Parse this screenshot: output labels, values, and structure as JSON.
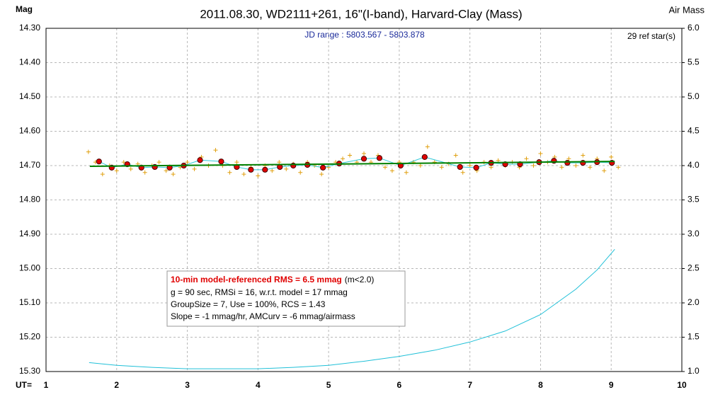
{
  "chart_data": {
    "type": "scatter",
    "title": "2011.08.30, WD2111+261, 16\"(I-band), Harvard-Clay (Mass)",
    "subtitle": "JD range : 5803.567 - 5803.878",
    "ref_stars": "29 ref star(s)",
    "ylabel": "Mag",
    "y2label": "Air Mass",
    "xlabel": "UT=",
    "xlim": [
      1,
      10
    ],
    "xticks": [
      1,
      2,
      3,
      4,
      5,
      6,
      7,
      8,
      9,
      10
    ],
    "ylim": [
      14.3,
      15.3
    ],
    "invert_y": true,
    "yticks": [
      {
        "value": 14.3,
        "label": "14.30"
      },
      {
        "value": 14.4,
        "label": "14.40"
      },
      {
        "value": 14.5,
        "label": "14.50"
      },
      {
        "value": 14.6,
        "label": "14.60"
      },
      {
        "value": 14.7,
        "label": "14.70"
      },
      {
        "value": 14.8,
        "label": "14.80"
      },
      {
        "value": 14.9,
        "label": "14.90"
      },
      {
        "value": 15.0,
        "label": "15.00"
      },
      {
        "value": 15.1,
        "label": "15.10"
      },
      {
        "value": 15.2,
        "label": "15.20"
      },
      {
        "value": 15.3,
        "label": "15.30"
      }
    ],
    "y2lim": [
      1,
      6
    ],
    "y2ticks": [
      {
        "value": 1,
        "label": "1.0"
      },
      {
        "value": 1.5,
        "label": "1.5"
      },
      {
        "value": 2,
        "label": "2.0"
      },
      {
        "value": 2.5,
        "label": "2.5"
      },
      {
        "value": 3,
        "label": "3.0"
      },
      {
        "value": 3.5,
        "label": "3.5"
      },
      {
        "value": 4,
        "label": "4.0"
      },
      {
        "value": 4.5,
        "label": "4.5"
      },
      {
        "value": 5,
        "label": "5.0"
      },
      {
        "value": 5.5,
        "label": "5.5"
      },
      {
        "value": 6,
        "label": "6.0"
      }
    ],
    "grid": true,
    "series": [
      {
        "style": "cross",
        "color": "#e0a010",
        "x": [
          1.6,
          1.7,
          1.8,
          1.9,
          2.0,
          2.1,
          2.2,
          2.3,
          2.4,
          2.5,
          2.6,
          2.7,
          2.8,
          2.9,
          3.0,
          3.1,
          3.2,
          3.3,
          3.4,
          3.5,
          3.6,
          3.7,
          3.8,
          3.9,
          4.0,
          4.1,
          4.2,
          4.3,
          4.4,
          4.5,
          4.6,
          4.7,
          4.8,
          4.9,
          5.0,
          5.1,
          5.2,
          5.3,
          5.4,
          5.5,
          5.6,
          5.7,
          5.8,
          5.9,
          6.0,
          6.1,
          6.2,
          6.3,
          6.4,
          6.5,
          6.6,
          6.7,
          6.8,
          6.9,
          7.0,
          7.1,
          7.2,
          7.3,
          7.4,
          7.5,
          7.6,
          7.7,
          7.8,
          7.9,
          8.0,
          8.1,
          8.2,
          8.3,
          8.4,
          8.5,
          8.6,
          8.7,
          8.8,
          8.9,
          9.0,
          9.1
        ],
        "values": [
          14.66,
          14.69,
          14.725,
          14.7,
          14.715,
          14.69,
          14.71,
          14.695,
          14.72,
          14.7,
          14.69,
          14.715,
          14.725,
          14.705,
          14.69,
          14.71,
          14.675,
          14.7,
          14.655,
          14.7,
          14.72,
          14.69,
          14.725,
          14.705,
          14.73,
          14.7,
          14.715,
          14.69,
          14.71,
          14.695,
          14.72,
          14.69,
          14.7,
          14.725,
          14.705,
          14.69,
          14.68,
          14.67,
          14.69,
          14.665,
          14.69,
          14.67,
          14.705,
          14.715,
          14.69,
          14.72,
          14.69,
          14.7,
          14.645,
          14.69,
          14.705,
          14.695,
          14.67,
          14.72,
          14.7,
          14.715,
          14.69,
          14.705,
          14.685,
          14.7,
          14.69,
          14.705,
          14.68,
          14.7,
          14.665,
          14.69,
          14.675,
          14.705,
          14.68,
          14.7,
          14.67,
          14.705,
          14.68,
          14.715,
          14.675,
          14.705
        ]
      },
      {
        "style": "dot",
        "color": "#e00000",
        "line_color": "#30c8d8",
        "x": [
          1.75,
          1.93,
          2.15,
          2.35,
          2.54,
          2.75,
          2.95,
          3.18,
          3.48,
          3.7,
          3.9,
          4.1,
          4.31,
          4.5,
          4.7,
          4.92,
          5.15,
          5.5,
          5.72,
          6.02,
          6.36,
          6.86,
          7.09,
          7.3,
          7.5,
          7.71,
          7.98,
          8.19,
          8.38,
          8.6,
          8.8,
          9.01
        ],
        "values": [
          14.688,
          14.706,
          14.696,
          14.706,
          14.704,
          14.706,
          14.7,
          14.684,
          14.688,
          14.704,
          14.712,
          14.712,
          14.704,
          14.7,
          14.698,
          14.706,
          14.694,
          14.68,
          14.678,
          14.7,
          14.675,
          14.704,
          14.706,
          14.692,
          14.696,
          14.696,
          14.69,
          14.686,
          14.692,
          14.692,
          14.69,
          14.692
        ]
      },
      {
        "style": "line",
        "color": "#008000",
        "x": [
          1.62,
          9.05
        ],
        "values": [
          14.702,
          14.688
        ]
      },
      {
        "style": "line",
        "color": "#20c0d8",
        "axis": "y2",
        "x": [
          1.61,
          2,
          2.5,
          3,
          3.5,
          4,
          4.5,
          5,
          5.5,
          6,
          6.5,
          7,
          7.5,
          8,
          8.5,
          8.8,
          9.05
        ],
        "values": [
          1.13,
          1.09,
          1.06,
          1.04,
          1.04,
          1.04,
          1.06,
          1.09,
          1.15,
          1.22,
          1.31,
          1.43,
          1.59,
          1.83,
          2.2,
          2.48,
          2.78
        ]
      }
    ],
    "info_box": {
      "headline": "10-min model-referenced RMS = 6.5 mmag",
      "headline_note": "(m<2.0)",
      "lines": [
        "g = 90 sec, RMSi = 16, w.r.t. model = 17 mmag",
        "GroupSize = 7, Use = 100%, RCS = 1.43",
        "Slope = -1 mmag/hr, AMCurv = -6 mmag/airmass"
      ]
    }
  }
}
